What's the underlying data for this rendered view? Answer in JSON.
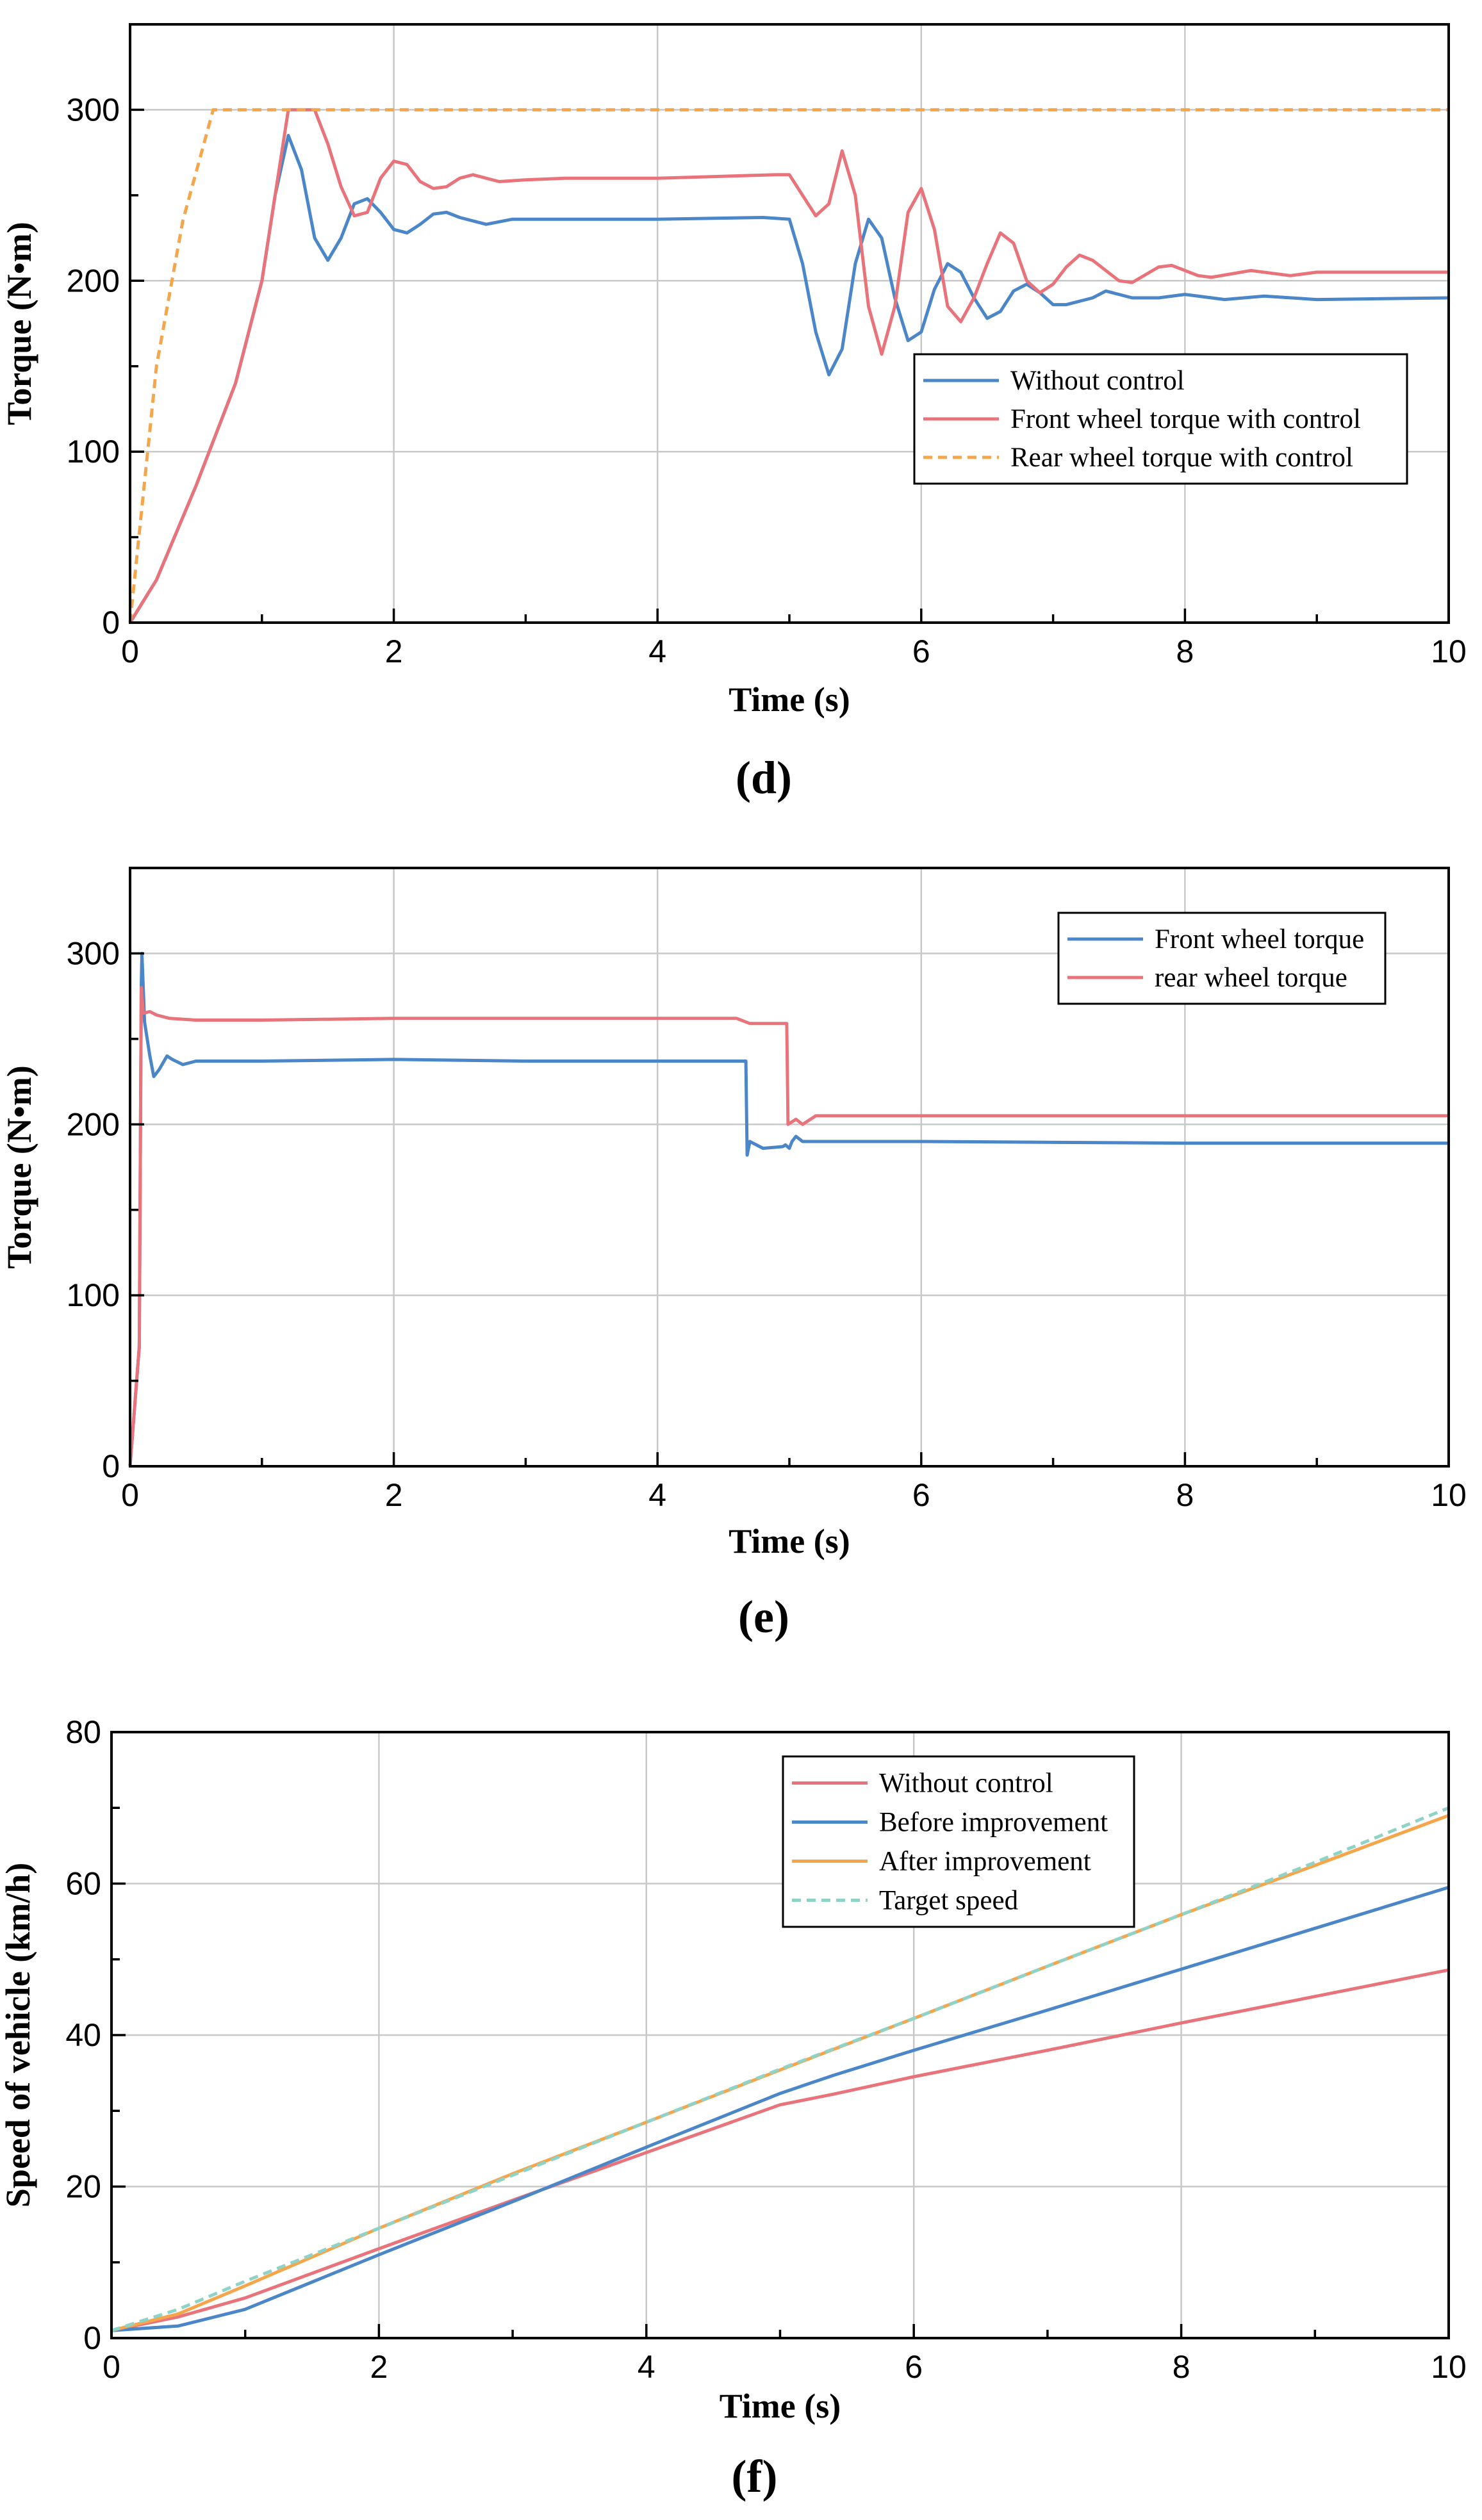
{
  "chart_data": [
    {
      "id": "d",
      "type": "line",
      "caption": "(d)",
      "xlabel": "Time (s)",
      "ylabel": "Torque (N•m)",
      "xlim": [
        0,
        10
      ],
      "ylim": [
        0,
        350
      ],
      "xticks": [
        0,
        2,
        4,
        6,
        8,
        10
      ],
      "yticks": [
        0,
        100,
        200,
        300
      ],
      "grid": true,
      "legend_position": "middle-right",
      "series": [
        {
          "name": "Without control",
          "color": "#4a86c8",
          "dash": false,
          "points": [
            [
              0,
              0
            ],
            [
              0.2,
              25
            ],
            [
              0.5,
              80
            ],
            [
              0.8,
              140
            ],
            [
              1.0,
              200
            ],
            [
              1.1,
              250
            ],
            [
              1.2,
              285
            ],
            [
              1.3,
              265
            ],
            [
              1.4,
              225
            ],
            [
              1.5,
              212
            ],
            [
              1.6,
              225
            ],
            [
              1.7,
              245
            ],
            [
              1.8,
              248
            ],
            [
              1.9,
              240
            ],
            [
              2.0,
              230
            ],
            [
              2.1,
              228
            ],
            [
              2.2,
              233
            ],
            [
              2.3,
              239
            ],
            [
              2.4,
              240
            ],
            [
              2.5,
              237
            ],
            [
              2.7,
              233
            ],
            [
              2.9,
              236
            ],
            [
              3.2,
              236
            ],
            [
              4.0,
              236
            ],
            [
              4.8,
              237
            ],
            [
              5.0,
              236
            ],
            [
              5.1,
              210
            ],
            [
              5.2,
              170
            ],
            [
              5.3,
              145
            ],
            [
              5.4,
              160
            ],
            [
              5.5,
              210
            ],
            [
              5.6,
              236
            ],
            [
              5.7,
              225
            ],
            [
              5.8,
              190
            ],
            [
              5.9,
              165
            ],
            [
              6.0,
              170
            ],
            [
              6.1,
              195
            ],
            [
              6.2,
              210
            ],
            [
              6.3,
              205
            ],
            [
              6.4,
              190
            ],
            [
              6.5,
              178
            ],
            [
              6.6,
              182
            ],
            [
              6.7,
              194
            ],
            [
              6.8,
              198
            ],
            [
              6.9,
              193
            ],
            [
              7.0,
              186
            ],
            [
              7.1,
              186
            ],
            [
              7.3,
              190
            ],
            [
              7.4,
              194
            ],
            [
              7.6,
              190
            ],
            [
              7.8,
              190
            ],
            [
              8.0,
              192
            ],
            [
              8.3,
              189
            ],
            [
              8.6,
              191
            ],
            [
              9.0,
              189
            ],
            [
              10.0,
              190
            ]
          ]
        },
        {
          "name": "Front wheel torque with control",
          "color": "#e8737a",
          "dash": false,
          "points": [
            [
              0,
              0
            ],
            [
              0.2,
              25
            ],
            [
              0.5,
              80
            ],
            [
              0.8,
              140
            ],
            [
              1.0,
              200
            ],
            [
              1.1,
              250
            ],
            [
              1.2,
              300
            ],
            [
              1.4,
              300
            ],
            [
              1.5,
              280
            ],
            [
              1.6,
              255
            ],
            [
              1.7,
              238
            ],
            [
              1.8,
              240
            ],
            [
              1.9,
              260
            ],
            [
              2.0,
              270
            ],
            [
              2.1,
              268
            ],
            [
              2.2,
              258
            ],
            [
              2.3,
              254
            ],
            [
              2.4,
              255
            ],
            [
              2.5,
              260
            ],
            [
              2.6,
              262
            ],
            [
              2.8,
              258
            ],
            [
              3.0,
              259
            ],
            [
              3.3,
              260
            ],
            [
              4.0,
              260
            ],
            [
              4.9,
              262
            ],
            [
              5.0,
              262
            ],
            [
              5.1,
              250
            ],
            [
              5.2,
              238
            ],
            [
              5.3,
              245
            ],
            [
              5.4,
              276
            ],
            [
              5.5,
              250
            ],
            [
              5.6,
              185
            ],
            [
              5.7,
              157
            ],
            [
              5.8,
              185
            ],
            [
              5.9,
              240
            ],
            [
              6.0,
              254
            ],
            [
              6.1,
              230
            ],
            [
              6.2,
              185
            ],
            [
              6.3,
              176
            ],
            [
              6.4,
              190
            ],
            [
              6.5,
              210
            ],
            [
              6.6,
              228
            ],
            [
              6.7,
              222
            ],
            [
              6.8,
              200
            ],
            [
              6.9,
              193
            ],
            [
              7.0,
              198
            ],
            [
              7.1,
              208
            ],
            [
              7.2,
              215
            ],
            [
              7.3,
              212
            ],
            [
              7.5,
              200
            ],
            [
              7.6,
              199
            ],
            [
              7.8,
              208
            ],
            [
              7.9,
              209
            ],
            [
              8.1,
              203
            ],
            [
              8.2,
              202
            ],
            [
              8.5,
              206
            ],
            [
              8.8,
              203
            ],
            [
              9.0,
              205
            ],
            [
              9.3,
              205
            ],
            [
              10.0,
              205
            ]
          ]
        },
        {
          "name": "Rear wheel torque with control",
          "color": "#f5a54a",
          "dash": true,
          "points": [
            [
              0,
              0
            ],
            [
              0.2,
              150
            ],
            [
              0.4,
              235
            ],
            [
              0.63,
              300
            ],
            [
              10.0,
              300
            ]
          ]
        }
      ]
    },
    {
      "id": "e",
      "type": "line",
      "caption": "(e)",
      "xlabel": "Time (s)",
      "ylabel": "Torque (N•m)",
      "xlim": [
        0,
        10
      ],
      "ylim": [
        0,
        350
      ],
      "xticks": [
        0,
        2,
        4,
        6,
        8,
        10
      ],
      "yticks": [
        0,
        100,
        200,
        300
      ],
      "grid": true,
      "legend_position": "top-right",
      "series": [
        {
          "name": "Front wheel torque",
          "color": "#4a86c8",
          "dash": false,
          "points": [
            [
              0,
              0
            ],
            [
              0.04,
              40
            ],
            [
              0.07,
              70
            ],
            [
              0.085,
              280
            ],
            [
              0.09,
              300
            ],
            [
              0.11,
              260
            ],
            [
              0.15,
              240
            ],
            [
              0.18,
              228
            ],
            [
              0.22,
              232
            ],
            [
              0.28,
              240
            ],
            [
              0.32,
              238
            ],
            [
              0.4,
              235
            ],
            [
              0.5,
              237
            ],
            [
              1.0,
              237
            ],
            [
              2.0,
              238
            ],
            [
              3.0,
              237
            ],
            [
              4.0,
              237
            ],
            [
              4.67,
              237
            ],
            [
              4.68,
              182
            ],
            [
              4.7,
              190
            ],
            [
              4.8,
              186
            ],
            [
              4.95,
              187
            ],
            [
              4.97,
              188
            ],
            [
              5.0,
              186
            ],
            [
              5.02,
              190
            ],
            [
              5.05,
              193
            ],
            [
              5.1,
              190
            ],
            [
              5.3,
              190
            ],
            [
              6.0,
              190
            ],
            [
              8.0,
              189
            ],
            [
              10.0,
              189
            ]
          ]
        },
        {
          "name": "rear wheel torque",
          "color": "#e8737a",
          "dash": false,
          "points": [
            [
              0,
              0
            ],
            [
              0.04,
              40
            ],
            [
              0.07,
              70
            ],
            [
              0.085,
              280
            ],
            [
              0.1,
              265
            ],
            [
              0.15,
              266
            ],
            [
              0.2,
              264
            ],
            [
              0.3,
              262
            ],
            [
              0.5,
              261
            ],
            [
              1.0,
              261
            ],
            [
              2.0,
              262
            ],
            [
              3.0,
              262
            ],
            [
              4.0,
              262
            ],
            [
              4.6,
              262
            ],
            [
              4.7,
              259
            ],
            [
              4.98,
              259
            ],
            [
              4.99,
              200
            ],
            [
              5.05,
              203
            ],
            [
              5.1,
              200
            ],
            [
              5.2,
              205
            ],
            [
              6.0,
              205
            ],
            [
              8.0,
              205
            ],
            [
              10.0,
              205
            ]
          ]
        }
      ]
    },
    {
      "id": "f",
      "type": "line",
      "caption": "(f)",
      "xlabel": "Time (s)",
      "ylabel": "Speed of vehicle (km/h)",
      "xlim": [
        0,
        10
      ],
      "ylim": [
        0,
        80
      ],
      "xticks": [
        0,
        2,
        4,
        6,
        8,
        10
      ],
      "yticks": [
        0,
        20,
        40,
        60,
        80
      ],
      "grid": true,
      "legend_position": "top-right",
      "series": [
        {
          "name": "Without control",
          "color": "#e8737a",
          "dash": false,
          "points": [
            [
              0,
              1
            ],
            [
              0.5,
              2.8
            ],
            [
              1,
              5.3
            ],
            [
              2,
              11.8
            ],
            [
              3,
              18.2
            ],
            [
              4,
              24.5
            ],
            [
              5,
              30.8
            ],
            [
              5.4,
              32.2
            ],
            [
              6,
              34.5
            ],
            [
              7,
              38
            ],
            [
              8,
              41.6
            ],
            [
              9,
              45.1
            ],
            [
              10,
              48.6
            ]
          ]
        },
        {
          "name": "Before improvement",
          "color": "#4a86c8",
          "dash": false,
          "points": [
            [
              0,
              1
            ],
            [
              0.5,
              1.6
            ],
            [
              1,
              3.8
            ],
            [
              1.5,
              7.4
            ],
            [
              2,
              11
            ],
            [
              3,
              18
            ],
            [
              4,
              25.2
            ],
            [
              5,
              32.3
            ],
            [
              5.4,
              34.7
            ],
            [
              6,
              38
            ],
            [
              7,
              43.3
            ],
            [
              8,
              48.7
            ],
            [
              9,
              54.1
            ],
            [
              10,
              59.5
            ]
          ]
        },
        {
          "name": "After improvement",
          "color": "#f5a54a",
          "dash": false,
          "points": [
            [
              0,
              1
            ],
            [
              0.5,
              3.2
            ],
            [
              1,
              6.9
            ],
            [
              2,
              14.5
            ],
            [
              3,
              21.7
            ],
            [
              4,
              28.5
            ],
            [
              5,
              35.4
            ],
            [
              6,
              42.2
            ],
            [
              7,
              49.1
            ],
            [
              8,
              55.9
            ],
            [
              9,
              62.4
            ],
            [
              10,
              69
            ]
          ]
        },
        {
          "name": "Target speed",
          "color": "#8fd3c8",
          "dash": true,
          "points": [
            [
              0,
              1
            ],
            [
              0.5,
              3.8
            ],
            [
              1,
              7.5
            ],
            [
              2,
              14.5
            ],
            [
              3,
              21.5
            ],
            [
              4,
              28.5
            ],
            [
              5,
              35.5
            ],
            [
              6,
              42.2
            ],
            [
              7,
              49.1
            ],
            [
              8,
              55.9
            ],
            [
              9,
              62.8
            ],
            [
              10,
              70
            ]
          ]
        }
      ]
    }
  ]
}
